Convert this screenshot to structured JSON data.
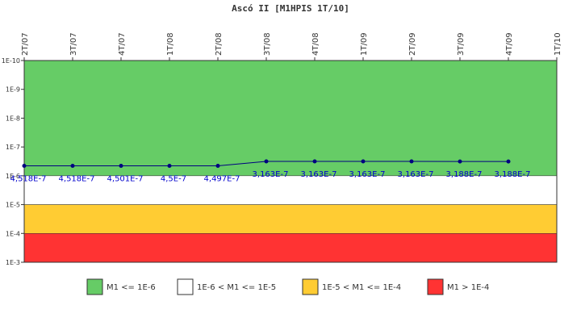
{
  "chart_data": {
    "type": "line",
    "title": "Ascó II [M1HPIS 1T/10]",
    "categories": [
      "2T/07",
      "3T/07",
      "4T/07",
      "1T/08",
      "2T/08",
      "3T/08",
      "4T/08",
      "1T/09",
      "2T/09",
      "3T/09",
      "4T/09",
      "1T/10"
    ],
    "series": [
      {
        "name": "M1",
        "color": "#000080",
        "values": [
          4.518e-07,
          4.518e-07,
          4.501e-07,
          4.5e-07,
          4.497e-07,
          3.163e-07,
          3.163e-07,
          3.163e-07,
          3.163e-07,
          3.188e-07,
          3.188e-07,
          null
        ],
        "value_labels": [
          "4,518E-7",
          "4,518E-7",
          "4,501E-7",
          "4,5E-7",
          "4,497E-7",
          "3,163E-7",
          "3,163E-7",
          "3,163E-7",
          "3,163E-7",
          "3,188E-7",
          "3,188E-7",
          null
        ]
      }
    ],
    "log_scale": true,
    "y_inverted": true,
    "ylim": [
      1e-10,
      0.001
    ],
    "yticks": [
      {
        "value": 1e-10,
        "label": "1E-10"
      },
      {
        "value": 1e-09,
        "label": "1E-9"
      },
      {
        "value": 1e-08,
        "label": "1E-8"
      },
      {
        "value": 1e-07,
        "label": "1E-7"
      },
      {
        "value": 1e-06,
        "label": "1E-6"
      },
      {
        "value": 1e-05,
        "label": "1E-5"
      },
      {
        "value": 0.0001,
        "label": "1E-4"
      },
      {
        "value": 0.001,
        "label": "1E-3"
      }
    ],
    "bands": [
      {
        "name": "M1 <= 1E-6",
        "color": "#66cc66",
        "from": 1e-10,
        "to": 1e-06
      },
      {
        "name": "1E-6 < M1 <= 1E-5",
        "color": "#ffffff",
        "from": 1e-06,
        "to": 1e-05
      },
      {
        "name": "1E-5 < M1 <= 1E-4",
        "color": "#ffcc33",
        "from": 1e-05,
        "to": 0.0001
      },
      {
        "name": "M1 > 1E-4",
        "color": "#ff3333",
        "from": 0.0001,
        "to": 0.001
      }
    ]
  }
}
